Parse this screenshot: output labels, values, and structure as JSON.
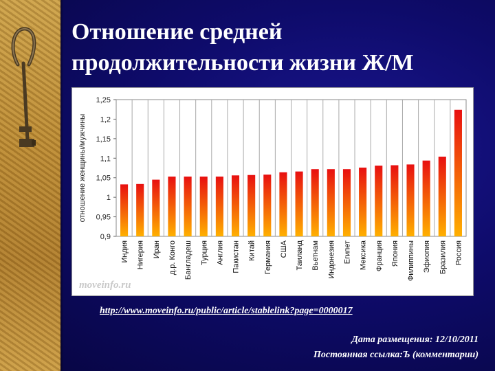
{
  "slide": {
    "title_line1": "Отношение средней",
    "title_line2": "продолжительности жизни Ж/М",
    "watermark": "moveinfo.ru",
    "source_url": "http://www.moveinfo.ru/public/article/stablelink?page=0000017",
    "date_text": "Дата размещения: 12/10/2011",
    "permalink_text": "Постоянная ссылка:Ъ (комментарии)"
  },
  "colors": {
    "background": "#0d0a5a",
    "bar_top": "#e81010",
    "bar_bottom": "#ffb000",
    "text": "#ffffff"
  },
  "chart_data": {
    "type": "bar",
    "title": "",
    "xlabel": "",
    "ylabel": "отношение женщины/мужчины",
    "ylim": [
      0.9,
      1.25
    ],
    "yticks": [
      0.9,
      0.95,
      1,
      1.05,
      1.1,
      1.15,
      1.2,
      1.25
    ],
    "ytick_labels": [
      "0,9",
      "0,95",
      "1",
      "1,05",
      "1,1",
      "1,15",
      "1,2",
      "1,25"
    ],
    "grid": "vertical",
    "legend": "none",
    "categories": [
      "Индия",
      "Нигерия",
      "Иран",
      "д.р. Конго",
      "Бангладеш",
      "Турция",
      "Англия",
      "Пакистан",
      "Китай",
      "Германия",
      "США",
      "Таиланд",
      "Вьетнам",
      "Индонезия",
      "Египет",
      "Мексика",
      "Франция",
      "Япония",
      "Филиппины",
      "Эфиопия",
      "Бразилия",
      "Россия"
    ],
    "values": [
      1.033,
      1.034,
      1.045,
      1.053,
      1.053,
      1.053,
      1.053,
      1.056,
      1.057,
      1.058,
      1.064,
      1.066,
      1.072,
      1.072,
      1.072,
      1.076,
      1.081,
      1.082,
      1.084,
      1.094,
      1.104,
      1.224
    ]
  }
}
